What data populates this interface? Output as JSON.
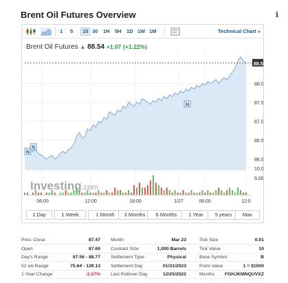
{
  "title": "Brent Oil Futures Overview",
  "info_icon": "info-icon",
  "toolbar": {
    "icons": [
      "candlestick-icon",
      "area-chart-icon"
    ],
    "timeframes": [
      "1",
      "5",
      "15",
      "30",
      "1H",
      "5H",
      "1D",
      "1W",
      "1M"
    ],
    "active_timeframe": "15",
    "settings_icon": "chart-settings-icon",
    "technical_chart_label": "Technical Chart »"
  },
  "quote": {
    "symbol": "Brent Oil Futures",
    "price": "88.54",
    "change": "+1.07",
    "change_pct": "(+1.22%)",
    "direction": "up"
  },
  "chart_data": {
    "type": "area",
    "y_ticks": [
      "88.0000",
      "87.5000",
      "87.0000",
      "86.5000",
      "86.0000"
    ],
    "ylim": [
      85.7,
      88.9
    ],
    "current_price_label": "88.5400",
    "x_ticks": [
      "06:00",
      "12:00",
      "18:00",
      "1/27",
      "06:00",
      "12:0"
    ],
    "volume_ticks": [
      "10.00k",
      "5.00k"
    ],
    "watermark_main": "Investing",
    "watermark_suffix": ".com",
    "markers": [
      "N",
      "N",
      "N"
    ],
    "price_series": [
      86.3,
      86.25,
      86.3,
      86.2,
      86.25,
      86.15,
      86.1,
      86.05,
      86.0,
      86.05,
      86.1,
      86.0,
      86.05,
      86.15,
      86.2,
      86.15,
      86.25,
      86.3,
      86.4,
      86.6,
      86.7,
      86.55,
      86.6,
      86.8,
      86.75,
      86.9,
      86.85,
      87.0,
      86.95,
      87.1,
      87.05,
      87.25,
      87.2,
      87.15,
      87.3,
      87.25,
      87.4,
      87.35,
      87.5,
      87.45,
      87.4,
      87.5,
      87.45,
      87.6,
      87.55,
      87.5,
      87.45,
      87.55,
      87.5,
      87.6,
      87.55,
      87.65,
      87.6,
      87.7,
      87.65,
      87.75,
      87.7,
      87.8,
      87.75,
      87.85,
      87.8,
      87.9,
      87.85,
      87.95,
      87.9,
      88.0,
      87.95,
      88.05,
      88.0,
      88.05,
      88.1,
      88.0,
      88.1,
      88.15,
      88.1,
      88.2,
      88.3,
      88.4,
      88.6,
      88.7,
      88.6,
      88.54
    ],
    "volume_series": [
      1,
      1,
      0,
      1,
      2,
      1,
      1,
      0,
      1,
      1,
      2,
      1,
      0,
      1,
      1,
      2,
      1,
      1,
      2,
      3,
      2,
      1,
      1,
      2,
      1,
      1,
      1,
      2,
      1,
      1,
      2,
      1,
      1,
      3,
      2,
      2,
      1,
      1,
      2,
      1,
      4,
      3,
      5,
      3,
      3,
      4,
      6,
      8,
      5,
      4,
      3,
      2,
      3,
      2,
      1,
      2,
      1,
      1,
      2,
      1,
      1,
      2,
      1,
      1,
      1,
      2,
      1,
      2,
      1,
      1,
      2,
      3,
      2,
      1,
      2,
      3,
      2,
      1,
      3,
      2,
      1,
      1
    ]
  },
  "range_buttons": [
    "1 Day",
    "1 Week",
    "1 Month",
    "3 Months",
    "6 Months",
    "1 Year",
    "5 years",
    "Max"
  ],
  "stats": [
    [
      {
        "label": "Prev. Close",
        "value": "87.47"
      },
      {
        "label": "Month",
        "value": "Mar 23"
      },
      {
        "label": "Tick Size",
        "value": "0.01"
      }
    ],
    [
      {
        "label": "Open",
        "value": "87.69"
      },
      {
        "label": "Contract Size",
        "value": "1,000 Barrels"
      },
      {
        "label": "Tick Value",
        "value": "10"
      }
    ],
    [
      {
        "label": "Day's Range",
        "value": "87.56 - 88.77"
      },
      {
        "label": "Settlement Type",
        "value": "Physical"
      },
      {
        "label": "Base Symbol",
        "value": "B"
      }
    ],
    [
      {
        "label": "52 wk Range",
        "value": "75.64 - 139.13"
      },
      {
        "label": "Settlement Day",
        "value": "01/31/2023"
      },
      {
        "label": "Point Value",
        "value": "1 = $1000"
      }
    ],
    [
      {
        "label": "1-Year Change",
        "value": "-2.57%"
      },
      {
        "label": "Last Rollover Day",
        "value": "12/25/2022"
      },
      {
        "label": "Months",
        "value": "FGHJKMNQUVXZ"
      }
    ]
  ]
}
